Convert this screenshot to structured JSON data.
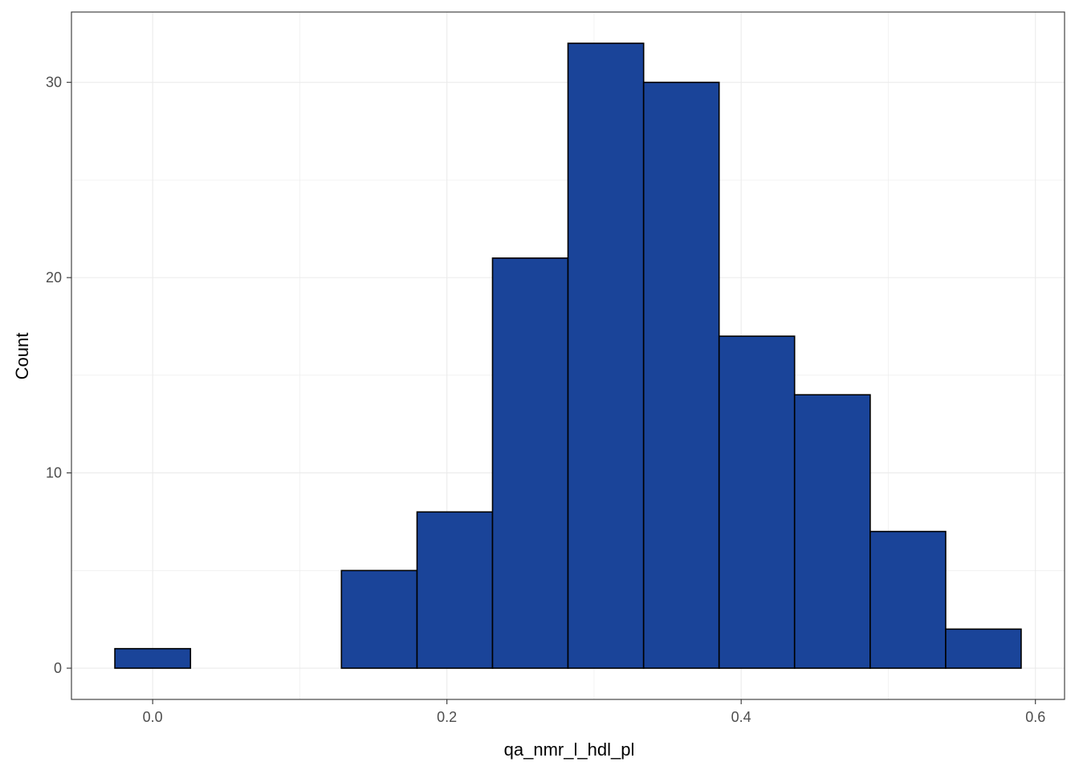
{
  "chart_data": {
    "type": "bar",
    "subtype": "histogram",
    "xlabel": "qa_nmr_l_hdl_pl",
    "ylabel": "Count",
    "bin_width": 0.0513,
    "bins": [
      {
        "x_start": -0.0257,
        "x_end": 0.0257,
        "count": 1
      },
      {
        "x_start": 0.0257,
        "x_end": 0.077,
        "count": 0
      },
      {
        "x_start": 0.077,
        "x_end": 0.1283,
        "count": 0
      },
      {
        "x_start": 0.1283,
        "x_end": 0.1797,
        "count": 5
      },
      {
        "x_start": 0.1797,
        "x_end": 0.231,
        "count": 8
      },
      {
        "x_start": 0.231,
        "x_end": 0.2823,
        "count": 21
      },
      {
        "x_start": 0.2823,
        "x_end": 0.3337,
        "count": 32
      },
      {
        "x_start": 0.3337,
        "x_end": 0.385,
        "count": 30
      },
      {
        "x_start": 0.385,
        "x_end": 0.4363,
        "count": 17
      },
      {
        "x_start": 0.4363,
        "x_end": 0.4877,
        "count": 14
      },
      {
        "x_start": 0.4877,
        "x_end": 0.539,
        "count": 7
      },
      {
        "x_start": 0.539,
        "x_end": 0.5903,
        "count": 2
      }
    ],
    "x_ticks": [
      0.0,
      0.2,
      0.4,
      0.6
    ],
    "x_tick_labels": [
      "0.0",
      "0.2",
      "0.4",
      "0.6"
    ],
    "y_ticks": [
      0,
      10,
      20,
      30
    ],
    "y_tick_labels": [
      "0",
      "10",
      "20",
      "30"
    ],
    "xlim": [
      -0.0552,
      0.6198
    ],
    "ylim": [
      -1.6,
      33.6
    ],
    "grid": true,
    "legend": "none",
    "colors": {
      "bar_fill": "#1a4499",
      "bar_outline": "#000000",
      "grid": "#ebebeb",
      "panel_border": "#333333"
    }
  }
}
